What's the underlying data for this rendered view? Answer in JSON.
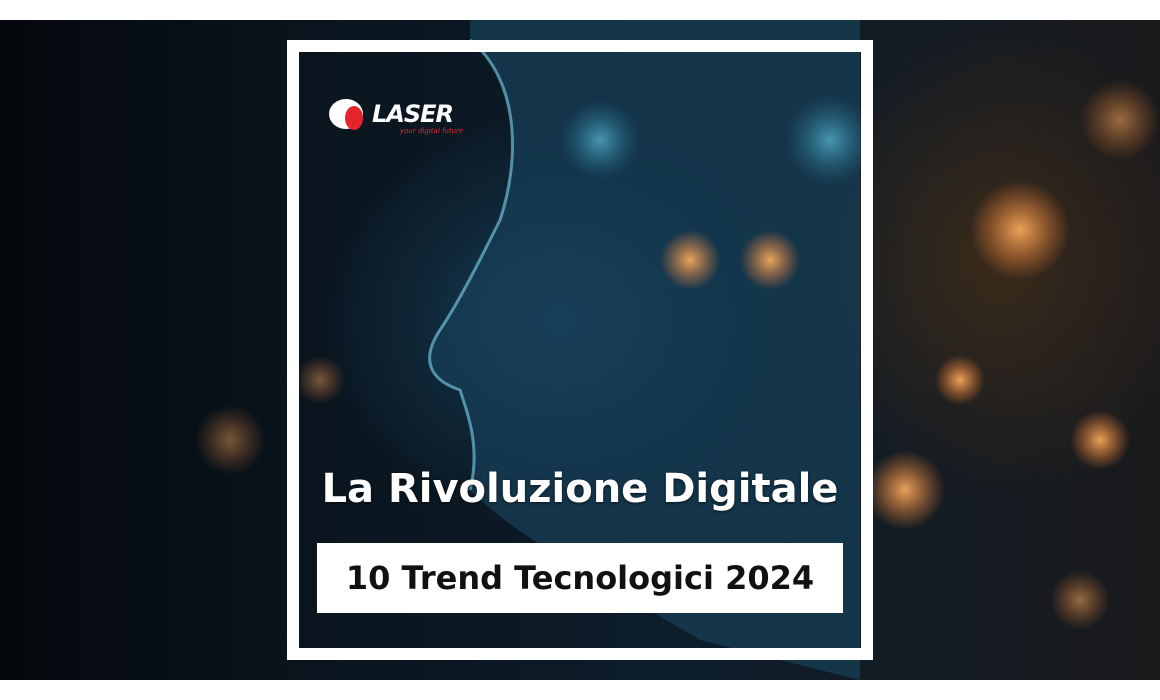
{
  "logo": {
    "name": "LASER",
    "tagline": "your digital future"
  },
  "banner": {
    "title": "La Rivoluzione Digitale",
    "subtitle": "10 Trend Tecnologici 2024"
  }
}
